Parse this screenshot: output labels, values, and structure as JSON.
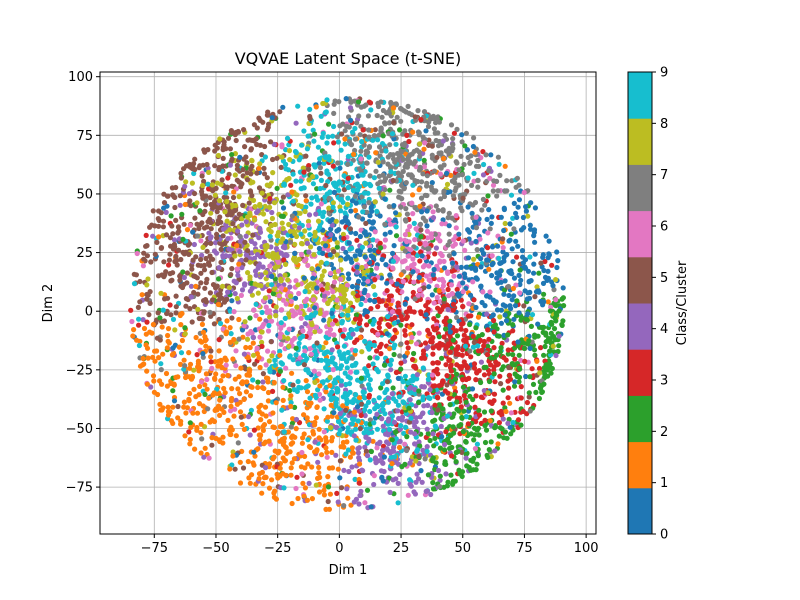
{
  "chart_data": {
    "type": "scatter",
    "title": "VQVAE Latent Space (t-SNE)",
    "xlabel": "Dim 1",
    "ylabel": "Dim 2",
    "xlim": [
      -97,
      104
    ],
    "ylim": [
      -95,
      102
    ],
    "xticks": [
      -75,
      -50,
      -25,
      0,
      25,
      50,
      75,
      100
    ],
    "yticks": [
      -75,
      -50,
      -25,
      0,
      25,
      50,
      75,
      100
    ],
    "xtick_labels": [
      "−75",
      "−50",
      "−25",
      "0",
      "25",
      "50",
      "75",
      "100"
    ],
    "ytick_labels": [
      "−75",
      "−50",
      "−25",
      "0",
      "25",
      "50",
      "75",
      "100"
    ],
    "grid": true,
    "colorbar": {
      "label": "Class/Cluster",
      "range": [
        0,
        9
      ],
      "ticks": [
        0,
        1,
        2,
        3,
        4,
        5,
        6,
        7,
        8,
        9
      ],
      "tick_labels": [
        "0",
        "1",
        "2",
        "3",
        "4",
        "5",
        "6",
        "7",
        "8",
        "9"
      ],
      "colors": [
        "#1f77b4",
        "#ff7f0e",
        "#2ca02c",
        "#d62728",
        "#9467bd",
        "#8c564b",
        "#e377c2",
        "#7f7f7f",
        "#bcbd22",
        "#17becf"
      ]
    },
    "point_cloud": {
      "shape": "disc",
      "center": [
        3,
        3
      ],
      "radius": 88
    },
    "class_regions": [
      {
        "class": 1,
        "center": [
          -55,
          -30
        ]
      },
      {
        "class": 1,
        "center": [
          -15,
          -55
        ]
      },
      {
        "class": 7,
        "center": [
          20,
          68
        ]
      },
      {
        "class": 7,
        "center": [
          35,
          55
        ]
      },
      {
        "class": 5,
        "center": [
          -45,
          55
        ]
      },
      {
        "class": 5,
        "center": [
          -60,
          20
        ]
      },
      {
        "class": 9,
        "center": [
          0,
          55
        ]
      },
      {
        "class": 9,
        "center": [
          -5,
          -20
        ]
      },
      {
        "class": 9,
        "center": [
          15,
          -40
        ]
      },
      {
        "class": 0,
        "center": [
          65,
          15
        ]
      },
      {
        "class": 0,
        "center": [
          10,
          25
        ]
      },
      {
        "class": 3,
        "center": [
          55,
          -30
        ]
      },
      {
        "class": 3,
        "center": [
          30,
          0
        ]
      },
      {
        "class": 2,
        "center": [
          50,
          -55
        ]
      },
      {
        "class": 2,
        "center": [
          75,
          -15
        ]
      },
      {
        "class": 4,
        "center": [
          -35,
          25
        ]
      },
      {
        "class": 4,
        "center": [
          25,
          -55
        ]
      },
      {
        "class": 6,
        "center": [
          -15,
          0
        ]
      },
      {
        "class": 6,
        "center": [
          35,
          20
        ]
      },
      {
        "class": 8,
        "center": [
          -30,
          38
        ]
      },
      {
        "class": 8,
        "center": [
          -10,
          10
        ]
      }
    ]
  }
}
